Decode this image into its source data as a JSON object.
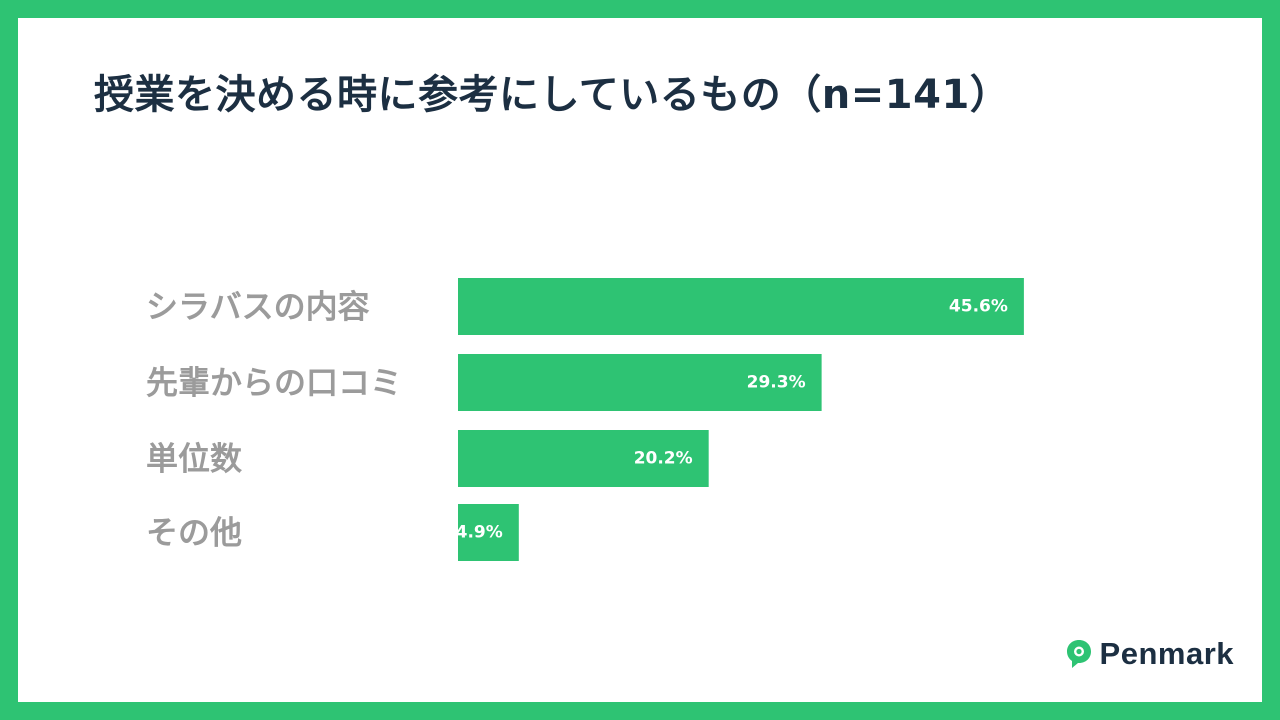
{
  "title": "授業を決める時に参考にしているもの（n=141）",
  "brand": "Penmark",
  "colors": {
    "frame": "#2ec373",
    "bar": "#2ec373",
    "title": "#1c2f42",
    "label": "#9b9b9b"
  },
  "chart_data": {
    "type": "bar",
    "orientation": "horizontal",
    "title": "授業を決める時に参考にしているもの（n=141）",
    "categories": [
      "シラバスの内容",
      "先輩からの口コミ",
      "単位数",
      "その他"
    ],
    "values": [
      45.6,
      29.3,
      20.2,
      4.9
    ],
    "value_labels": [
      "45.6%",
      "29.3%",
      "20.2%",
      "4.9%"
    ],
    "unit": "%",
    "xlim": [
      0,
      100
    ],
    "grid": false,
    "legend": "none"
  }
}
